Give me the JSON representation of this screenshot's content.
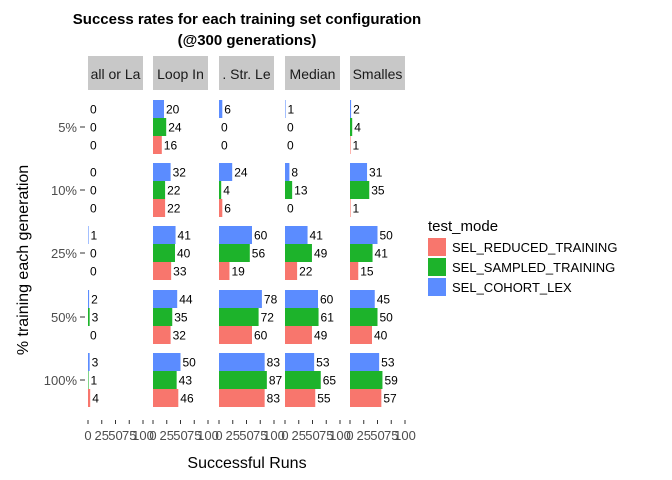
{
  "chart_data": {
    "type": "bar",
    "orientation": "horizontal",
    "title": "Success rates for each training set configuration",
    "subtitle": "(@300 generations)",
    "xlabel": "Successful Runs",
    "ylabel": "% training each generation",
    "xlim": [
      0,
      100
    ],
    "x_ticks": [
      "0",
      "25",
      "50",
      "75",
      "100"
    ],
    "categories": [
      "5%",
      "10%",
      "25%",
      "50%",
      "100%"
    ],
    "facets": [
      "all or La",
      "Loop In",
      ". Str. Le",
      "Median",
      "Smalles"
    ],
    "legend": {
      "title": "test_mode",
      "position": "right",
      "entries": [
        "SEL_REDUCED_TRAINING",
        "SEL_SAMPLED_TRAINING",
        "SEL_COHORT_LEX"
      ]
    },
    "colors": {
      "SEL_REDUCED_TRAINING": "#F8766D",
      "SEL_SAMPLED_TRAINING": "#1DB32B",
      "SEL_COHORT_LEX": "#5B8CFF",
      "strip": "#C8C8C8"
    },
    "series": [
      {
        "name": "SEL_REDUCED_TRAINING",
        "values_by_facet": [
          [
            0,
            0,
            0,
            0,
            4
          ],
          [
            16,
            22,
            33,
            32,
            46
          ],
          [
            0,
            6,
            19,
            60,
            83
          ],
          [
            0,
            0,
            22,
            49,
            55
          ],
          [
            1,
            1,
            15,
            40,
            57
          ]
        ]
      },
      {
        "name": "SEL_SAMPLED_TRAINING",
        "values_by_facet": [
          [
            0,
            0,
            0,
            3,
            1
          ],
          [
            24,
            22,
            40,
            35,
            43
          ],
          [
            0,
            4,
            56,
            72,
            87
          ],
          [
            0,
            13,
            49,
            61,
            65
          ],
          [
            4,
            35,
            41,
            50,
            59
          ]
        ]
      },
      {
        "name": "SEL_COHORT_LEX",
        "values_by_facet": [
          [
            0,
            0,
            1,
            2,
            3
          ],
          [
            20,
            32,
            41,
            44,
            50
          ],
          [
            6,
            24,
            60,
            78,
            83
          ],
          [
            1,
            8,
            41,
            60,
            53
          ],
          [
            2,
            31,
            50,
            45,
            53
          ]
        ]
      }
    ]
  }
}
